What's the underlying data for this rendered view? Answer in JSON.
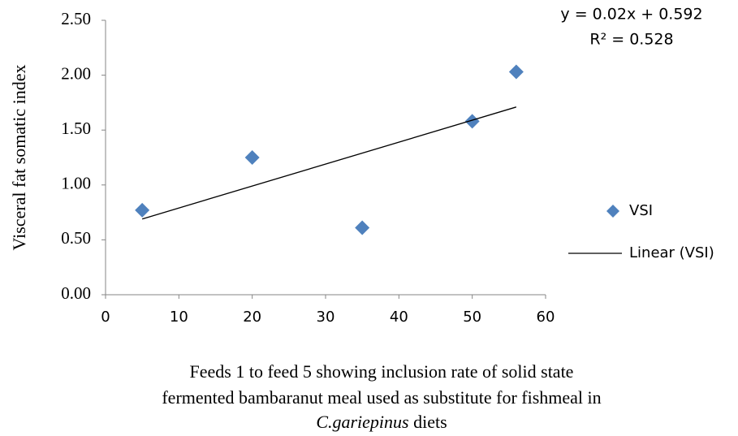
{
  "chart_data": {
    "type": "scatter",
    "x_label": {
      "lines": [
        "Feeds 1 to feed 5  showing inclusion rate of solid state",
        "fermented bambaranut meal used as substitute for fishmeal in"
      ],
      "italic": "C.gariepinus",
      "tail": " diets"
    },
    "y_label": "Visceral fat somatic index",
    "equation": "y = 0.02x + 0.592",
    "r_squared": "R² = 0.528",
    "series": [
      {
        "name": "VSI",
        "color": "#4f81bd",
        "marker": "diamond",
        "x": [
          5,
          20,
          35,
          50,
          56
        ],
        "values": [
          0.77,
          1.25,
          0.61,
          1.58,
          2.03
        ]
      },
      {
        "name": "Linear (VSI)",
        "color": "#000000",
        "marker": "line",
        "x": [
          5,
          56
        ],
        "values": [
          0.69,
          1.71
        ]
      }
    ],
    "xlim": [
      0,
      60
    ],
    "xticks": [
      0,
      10,
      20,
      30,
      40,
      50,
      60
    ],
    "ylim": [
      0,
      2.5
    ],
    "yticks": [
      {
        "value": 0,
        "label": "0.00"
      },
      {
        "value": 0.5,
        "label": "0.50"
      },
      {
        "value": 1,
        "label": "1.00"
      },
      {
        "value": 1.5,
        "label": "1.50"
      },
      {
        "value": 2,
        "label": "2.00"
      },
      {
        "value": 2.5,
        "label": "2.50"
      }
    ],
    "legend": "right"
  }
}
